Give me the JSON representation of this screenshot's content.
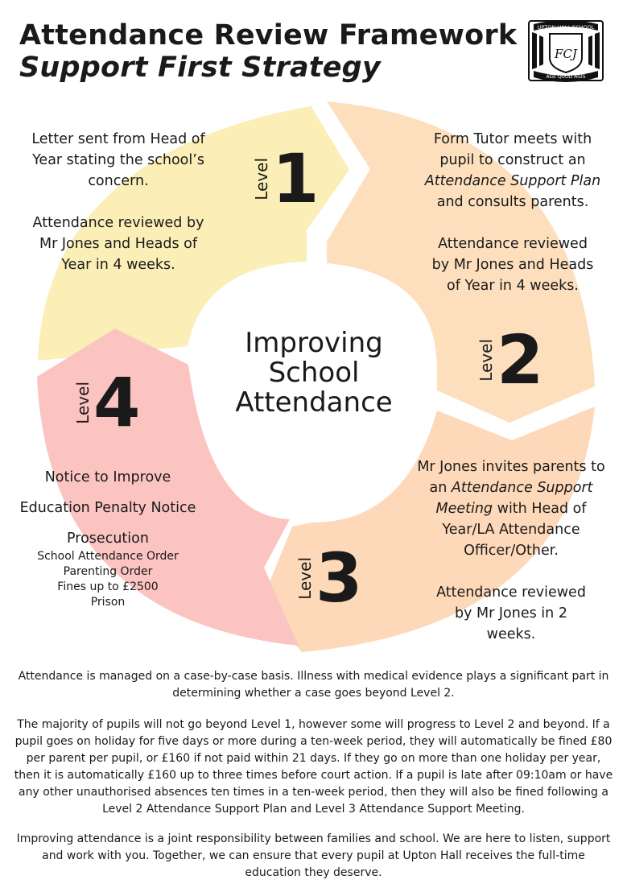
{
  "title": {
    "line1": "Attendance Review Framework",
    "line2": "Support First Strategy"
  },
  "crest": {
    "top_text": "UPTON HALL SCHOOL",
    "monogram": "FCJ",
    "motto": "AGE QUOD AGIS"
  },
  "centre": {
    "line1": "Improving",
    "line2": "School",
    "line3": "Attendance"
  },
  "levels": [
    {
      "word": "Level",
      "number": "1",
      "color": "#fbeeb6",
      "text1": "Letter sent from Head of Year stating the school’s concern.",
      "text2": "Attendance reviewed by Mr Jones and Heads of Year in 4 weeks."
    },
    {
      "word": "Level",
      "number": "2",
      "color": "#fddfbd",
      "text1a": "Form Tutor meets with pupil to construct an",
      "text1b": "Attendance Support Plan",
      "text1c": "and consults parents.",
      "text2": "Attendance reviewed by Mr Jones and Heads of Year in 4 weeks."
    },
    {
      "word": "Level",
      "number": "3",
      "color": "#fdd9b9",
      "text1a": "Mr Jones invites parents to an",
      "text1b": "Attendance Support Meeting",
      "text1c": "with Head of Year/LA Attendance Officer/Other.",
      "text2": "Attendance reviewed by Mr Jones in 2 weeks."
    },
    {
      "word": "Level",
      "number": "4",
      "color": "#fbc4c1",
      "item1": "Notice to Improve",
      "item2": "Education Penalty Notice",
      "item3": "Prosecution",
      "sub": [
        "School Attendance Order",
        "Parenting Order",
        "Fines up to £2500",
        "Prison"
      ]
    }
  ],
  "footer": [
    "Attendance is managed on a case-by-case basis. Illness with medical evidence plays a significant part in determining whether a case goes beyond Level 2.",
    "The majority of pupils will not go beyond Level 1, however some will progress to Level 2 and beyond. If a pupil goes on holiday for five days or more during a ten-week period, they will automatically be fined £80 per parent per pupil, or £160 if not paid within 21 days. If they go on more than one holiday per year, then it is automatically £160 up to three times before court action. If a pupil is late after 09:10am or have any other unauthorised absences ten times in a ten-week period, then they will also be fined following a Level 2 Attendance Support Plan and Level 3 Attendance Support Meeting.",
    "Improving attendance is a joint responsibility between families and school. We are here to listen, support and work with you. Together, we can ensure that every pupil at Upton Hall receives the full-time education they deserve."
  ]
}
